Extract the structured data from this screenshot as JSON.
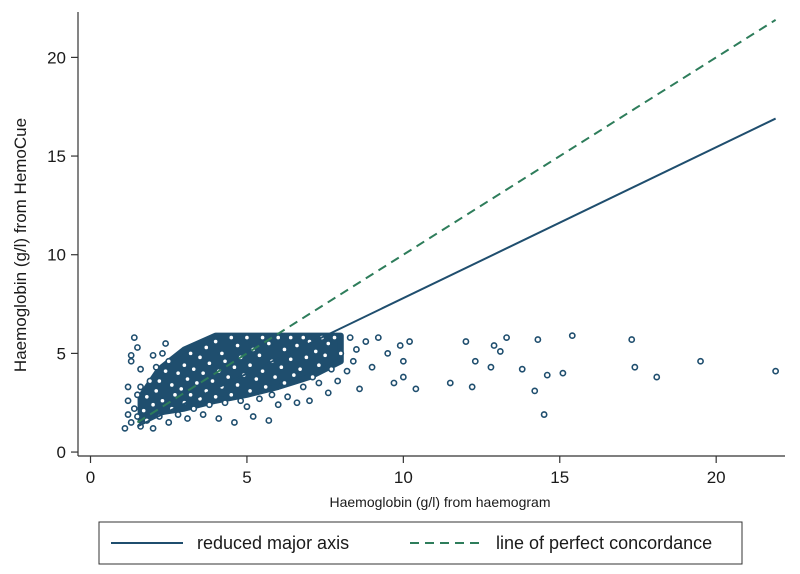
{
  "chart_data": {
    "type": "scatter",
    "title": "",
    "xlabel": "Haemoglobin (g/l) from haemogram",
    "ylabel": "Haemoglobin (g/l) from HemoCue",
    "xlim": [
      -0.4,
      22.2
    ],
    "ylim": [
      -0.2,
      22.3
    ],
    "x_ticks": [
      {
        "value": 0,
        "label": "0"
      },
      {
        "value": 5,
        "label": "5"
      },
      {
        "value": 10,
        "label": "10"
      },
      {
        "value": 15,
        "label": "15"
      },
      {
        "value": 20,
        "label": "20"
      }
    ],
    "y_ticks": [
      {
        "value": 0,
        "label": "0"
      },
      {
        "value": 5,
        "label": "5"
      },
      {
        "value": 10,
        "label": "10"
      },
      {
        "value": 15,
        "label": "15"
      },
      {
        "value": 20,
        "label": "20"
      }
    ],
    "grid": false,
    "legend_position": "bottom",
    "colors": {
      "points": "#1f4e6e",
      "reduced_major_axis": "#1f4e6e",
      "concordance": "#2e7d5b"
    },
    "series": [
      {
        "name": "",
        "kind": "points",
        "points": [
          [
            1.1,
            1.2
          ],
          [
            1.2,
            1.9
          ],
          [
            1.3,
            1.5
          ],
          [
            1.2,
            2.6
          ],
          [
            1.5,
            1.8
          ],
          [
            1.4,
            2.2
          ],
          [
            1.6,
            1.3
          ],
          [
            1.7,
            2.1
          ],
          [
            1.5,
            2.9
          ],
          [
            1.6,
            3.3
          ],
          [
            1.2,
            3.3
          ],
          [
            1.3,
            4.6
          ],
          [
            1.3,
            4.9
          ],
          [
            1.5,
            5.3
          ],
          [
            1.4,
            5.8
          ],
          [
            1.6,
            4.2
          ],
          [
            1.8,
            1.6
          ],
          [
            1.8,
            2.8
          ],
          [
            1.9,
            3.6
          ],
          [
            2.0,
            1.2
          ],
          [
            2.0,
            2.4
          ],
          [
            2.1,
            3.1
          ],
          [
            2.1,
            4.3
          ],
          [
            2.0,
            4.9
          ],
          [
            2.2,
            1.8
          ],
          [
            2.3,
            2.6
          ],
          [
            2.2,
            3.6
          ],
          [
            2.4,
            4.1
          ],
          [
            2.3,
            5.0
          ],
          [
            2.5,
            1.5
          ],
          [
            2.4,
            5.5
          ],
          [
            2.6,
            2.2
          ],
          [
            2.6,
            3.4
          ],
          [
            2.5,
            4.6
          ],
          [
            2.7,
            2.9
          ],
          [
            2.8,
            1.9
          ],
          [
            2.8,
            4.0
          ],
          [
            2.9,
            3.2
          ],
          [
            3.0,
            2.5
          ],
          [
            3.0,
            4.4
          ],
          [
            3.1,
            1.7
          ],
          [
            3.1,
            3.7
          ],
          [
            3.2,
            5.0
          ],
          [
            3.2,
            2.9
          ],
          [
            3.3,
            4.2
          ],
          [
            3.3,
            2.2
          ],
          [
            3.4,
            3.5
          ],
          [
            3.5,
            4.8
          ],
          [
            3.5,
            2.7
          ],
          [
            3.6,
            1.9
          ],
          [
            3.6,
            4.0
          ],
          [
            3.7,
            3.1
          ],
          [
            3.7,
            5.3
          ],
          [
            3.8,
            2.4
          ],
          [
            3.8,
            4.5
          ],
          [
            3.9,
            3.6
          ],
          [
            4.0,
            5.6
          ],
          [
            4.0,
            2.8
          ],
          [
            4.1,
            4.1
          ],
          [
            4.1,
            1.7
          ],
          [
            4.2,
            3.3
          ],
          [
            4.2,
            5.0
          ],
          [
            4.3,
            2.5
          ],
          [
            4.3,
            4.6
          ],
          [
            4.4,
            3.8
          ],
          [
            4.5,
            5.8
          ],
          [
            4.5,
            2.9
          ],
          [
            4.6,
            4.3
          ],
          [
            4.6,
            1.5
          ],
          [
            4.7,
            3.4
          ],
          [
            4.7,
            5.4
          ],
          [
            4.8,
            2.6
          ],
          [
            4.8,
            4.8
          ],
          [
            4.9,
            3.9
          ],
          [
            5.0,
            5.8
          ],
          [
            5.0,
            2.3
          ],
          [
            5.1,
            4.4
          ],
          [
            5.1,
            3.1
          ],
          [
            5.2,
            5.2
          ],
          [
            5.2,
            1.8
          ],
          [
            5.3,
            3.7
          ],
          [
            5.4,
            4.9
          ],
          [
            5.4,
            2.7
          ],
          [
            5.5,
            5.8
          ],
          [
            5.5,
            4.1
          ],
          [
            5.6,
            3.3
          ],
          [
            5.7,
            1.6
          ],
          [
            5.7,
            5.5
          ],
          [
            5.8,
            4.6
          ],
          [
            5.8,
            2.9
          ],
          [
            5.9,
            3.8
          ],
          [
            6.0,
            5.8
          ],
          [
            6.0,
            2.4
          ],
          [
            6.1,
            4.3
          ],
          [
            6.2,
            3.5
          ],
          [
            6.2,
            5.2
          ],
          [
            6.3,
            2.8
          ],
          [
            6.4,
            4.7
          ],
          [
            6.4,
            5.8
          ],
          [
            6.5,
            3.9
          ],
          [
            6.6,
            2.5
          ],
          [
            6.6,
            5.4
          ],
          [
            6.7,
            4.2
          ],
          [
            6.8,
            3.3
          ],
          [
            6.8,
            5.8
          ],
          [
            6.9,
            4.8
          ],
          [
            7.0,
            2.6
          ],
          [
            7.0,
            5.6
          ],
          [
            7.1,
            3.8
          ],
          [
            7.2,
            5.1
          ],
          [
            7.3,
            4.4
          ],
          [
            7.3,
            3.5
          ],
          [
            7.4,
            5.8
          ],
          [
            7.5,
            4.9
          ],
          [
            7.6,
            3.0
          ],
          [
            7.6,
            5.5
          ],
          [
            7.7,
            4.2
          ],
          [
            7.8,
            5.8
          ],
          [
            7.9,
            3.6
          ],
          [
            8.0,
            5.0
          ],
          [
            8.2,
            4.1
          ],
          [
            8.3,
            5.8
          ],
          [
            8.4,
            4.6
          ],
          [
            8.5,
            5.2
          ],
          [
            8.6,
            3.2
          ],
          [
            8.8,
            5.6
          ],
          [
            9.0,
            4.3
          ],
          [
            9.2,
            5.8
          ],
          [
            9.5,
            5.0
          ],
          [
            9.7,
            3.5
          ],
          [
            9.9,
            5.4
          ],
          [
            10.0,
            4.6
          ],
          [
            10.0,
            3.8
          ],
          [
            10.2,
            5.6
          ],
          [
            10.4,
            3.2
          ],
          [
            11.5,
            3.5
          ],
          [
            12.0,
            5.6
          ],
          [
            12.2,
            3.3
          ],
          [
            12.3,
            4.6
          ],
          [
            12.8,
            4.3
          ],
          [
            12.9,
            5.4
          ],
          [
            13.1,
            5.1
          ],
          [
            13.3,
            5.8
          ],
          [
            13.8,
            4.2
          ],
          [
            14.2,
            3.1
          ],
          [
            14.3,
            5.7
          ],
          [
            14.5,
            1.9
          ],
          [
            14.6,
            3.9
          ],
          [
            15.1,
            4.0
          ],
          [
            15.4,
            5.9
          ],
          [
            17.3,
            5.7
          ],
          [
            17.4,
            4.3
          ],
          [
            18.1,
            3.8
          ],
          [
            19.5,
            4.6
          ],
          [
            21.9,
            4.1
          ]
        ],
        "dense_core": {
          "polygon": [
            [
              1.6,
              1.6
            ],
            [
              2.2,
              2.0
            ],
            [
              3.0,
              2.2
            ],
            [
              4.0,
              2.6
            ],
            [
              5.0,
              2.9
            ],
            [
              6.0,
              3.3
            ],
            [
              7.0,
              3.8
            ],
            [
              8.0,
              4.6
            ],
            [
              8.0,
              5.9
            ],
            [
              4.0,
              5.9
            ],
            [
              3.0,
              5.2
            ],
            [
              2.2,
              4.2
            ],
            [
              1.6,
              2.8
            ]
          ]
        }
      },
      {
        "name": "reduced major axis",
        "kind": "line",
        "dash": "solid",
        "x": [
          1.5,
          21.9
        ],
        "y": [
          1.3,
          16.9
        ]
      },
      {
        "name": "line of perfect concordance",
        "kind": "line",
        "dash": "dashed",
        "x": [
          1.5,
          21.9
        ],
        "y": [
          1.5,
          21.9
        ]
      }
    ]
  }
}
